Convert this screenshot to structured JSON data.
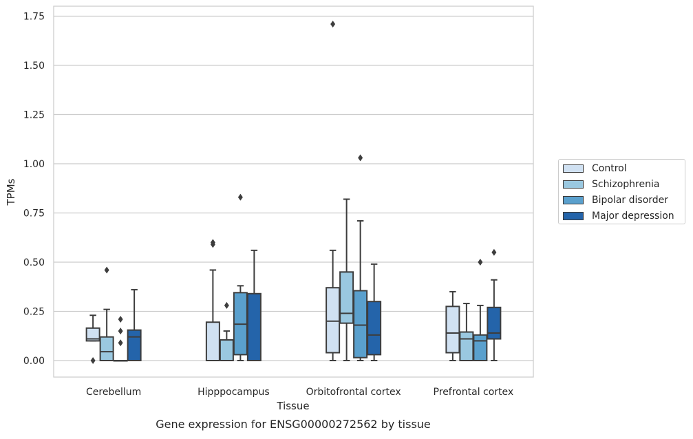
{
  "caption": "Gene expression for ENSG00000272562 by tissue",
  "chart_data": {
    "type": "box",
    "xlabel": "Tissue",
    "ylabel": "TPMs",
    "ylim": [
      -0.08,
      1.8
    ],
    "yticks": [
      "0.00",
      "0.25",
      "0.50",
      "0.75",
      "1.00",
      "1.25",
      "1.50",
      "1.75"
    ],
    "ytick_values": [
      0,
      0.25,
      0.5,
      0.75,
      1.0,
      1.25,
      1.5,
      1.75
    ],
    "grid": "horizontal",
    "legend_position": "right",
    "categories": [
      "Cerebellum",
      "Hipppocampus",
      "Orbitofrontal cortex",
      "Prefrontal cortex"
    ],
    "series": [
      {
        "name": "Control",
        "color": "#d0e1f2",
        "boxes": [
          {
            "q1": 0.1,
            "median": 0.11,
            "q3": 0.165,
            "whisker_low": 0.1,
            "whisker_high": 0.23,
            "outliers": [
              0.0
            ]
          },
          {
            "q1": 0.0,
            "median": 0.0,
            "q3": 0.195,
            "whisker_low": 0.0,
            "whisker_high": 0.46,
            "outliers": [
              0.59,
              0.6
            ]
          },
          {
            "q1": 0.04,
            "median": 0.2,
            "q3": 0.37,
            "whisker_low": 0.0,
            "whisker_high": 0.56,
            "outliers": [
              1.71
            ]
          },
          {
            "q1": 0.04,
            "median": 0.14,
            "q3": 0.275,
            "whisker_low": 0.0,
            "whisker_high": 0.35,
            "outliers": []
          }
        ]
      },
      {
        "name": "Schizophrenia",
        "color": "#9ac8e0",
        "boxes": [
          {
            "q1": 0.0,
            "median": 0.045,
            "q3": 0.12,
            "whisker_low": 0.0,
            "whisker_high": 0.26,
            "outliers": [
              0.46
            ]
          },
          {
            "q1": 0.0,
            "median": 0.0,
            "q3": 0.105,
            "whisker_low": 0.0,
            "whisker_high": 0.15,
            "outliers": [
              0.28
            ]
          },
          {
            "q1": 0.19,
            "median": 0.24,
            "q3": 0.45,
            "whisker_low": 0.0,
            "whisker_high": 0.82,
            "outliers": []
          },
          {
            "q1": 0.0,
            "median": 0.11,
            "q3": 0.145,
            "whisker_low": 0.0,
            "whisker_high": 0.29,
            "outliers": []
          }
        ]
      },
      {
        "name": "Bipolar disorder",
        "color": "#5aa0cd",
        "boxes": [
          {
            "q1": 0.0,
            "median": 0.0,
            "q3": 0.0,
            "whisker_low": 0.0,
            "whisker_high": 0.0,
            "outliers": [
              0.09,
              0.15,
              0.21
            ]
          },
          {
            "q1": 0.03,
            "median": 0.185,
            "q3": 0.345,
            "whisker_low": 0.0,
            "whisker_high": 0.38,
            "outliers": [
              0.83
            ]
          },
          {
            "q1": 0.015,
            "median": 0.18,
            "q3": 0.355,
            "whisker_low": 0.0,
            "whisker_high": 0.71,
            "outliers": [
              1.03
            ]
          },
          {
            "q1": 0.0,
            "median": 0.1,
            "q3": 0.13,
            "whisker_low": 0.0,
            "whisker_high": 0.28,
            "outliers": [
              0.5
            ]
          }
        ]
      },
      {
        "name": "Major depression",
        "color": "#2464aa",
        "boxes": [
          {
            "q1": 0.0,
            "median": 0.12,
            "q3": 0.155,
            "whisker_low": 0.0,
            "whisker_high": 0.36,
            "outliers": []
          },
          {
            "q1": 0.0,
            "median": 0.0,
            "q3": 0.34,
            "whisker_low": 0.0,
            "whisker_high": 0.56,
            "outliers": []
          },
          {
            "q1": 0.03,
            "median": 0.13,
            "q3": 0.3,
            "whisker_low": 0.0,
            "whisker_high": 0.49,
            "outliers": []
          },
          {
            "q1": 0.11,
            "median": 0.14,
            "q3": 0.27,
            "whisker_low": 0.0,
            "whisker_high": 0.41,
            "outliers": [
              0.55
            ]
          }
        ]
      }
    ]
  }
}
